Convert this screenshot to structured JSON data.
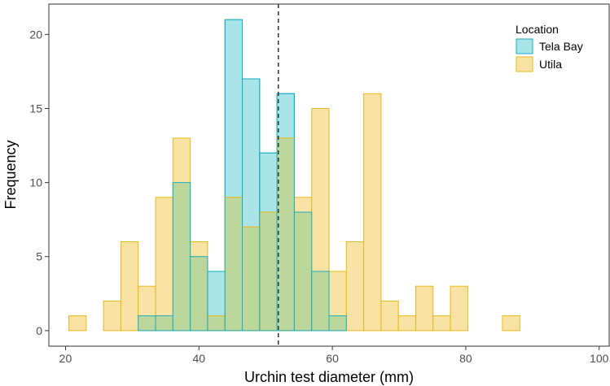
{
  "chart_data": {
    "type": "bar",
    "subtype": "overlaid-histogram",
    "xlabel": "Urchin test diameter (mm)",
    "ylabel": "Frequency",
    "xlim": [
      17.5,
      101.5
    ],
    "ylim": [
      -1.05,
      22.05
    ],
    "xticks": [
      20,
      40,
      60,
      80,
      100
    ],
    "yticks": [
      0,
      5,
      10,
      15,
      20
    ],
    "grid": false,
    "bins": [
      [
        20.5,
        23.1
      ],
      [
        23.1,
        25.7
      ],
      [
        25.7,
        28.3
      ],
      [
        28.3,
        30.9
      ],
      [
        30.9,
        33.5
      ],
      [
        33.5,
        36.1
      ],
      [
        36.1,
        38.7
      ],
      [
        38.7,
        41.3
      ],
      [
        41.3,
        43.9
      ],
      [
        43.9,
        46.5
      ],
      [
        46.5,
        49.1
      ],
      [
        49.1,
        51.7
      ],
      [
        51.7,
        54.3
      ],
      [
        54.3,
        56.9
      ],
      [
        56.9,
        59.5
      ],
      [
        59.5,
        62.1
      ],
      [
        62.1,
        64.7
      ],
      [
        64.7,
        67.3
      ],
      [
        67.3,
        69.9
      ],
      [
        69.9,
        72.5
      ],
      [
        72.5,
        75.1
      ],
      [
        75.1,
        77.7
      ],
      [
        77.7,
        80.3
      ],
      [
        80.3,
        82.9
      ],
      [
        82.9,
        85.5
      ],
      [
        85.5,
        88.1
      ],
      [
        88.1,
        90.7
      ],
      [
        90.7,
        93.3
      ],
      [
        93.3,
        95.9
      ],
      [
        95.9,
        98.5
      ]
    ],
    "series": [
      {
        "name": "Tela Bay",
        "fill": "#a8e4e8",
        "stroke": "#1aacbf",
        "values": [
          0,
          0,
          0,
          0,
          1,
          1,
          10,
          5,
          4,
          21,
          17,
          12,
          16,
          8,
          4,
          1,
          0,
          0,
          0,
          0,
          0,
          0,
          0,
          0,
          0,
          0,
          0,
          0,
          0,
          0
        ]
      },
      {
        "name": "Utila",
        "fill": "#f8e3a4",
        "stroke": "#e6b81c",
        "values": [
          1,
          0,
          2,
          6,
          3,
          9,
          13,
          6,
          1,
          9,
          7,
          8,
          13,
          9,
          15,
          4,
          6,
          16,
          2,
          1,
          3,
          1,
          3,
          0,
          0,
          1,
          0,
          0,
          0,
          0
        ]
      }
    ],
    "overlap_fill": "#bcd79b",
    "vline": {
      "x": 51.9,
      "style": "dashed",
      "color": "#333333"
    },
    "legend": {
      "title": "Location",
      "position": "top-right",
      "entries": [
        "Tela Bay",
        "Utila"
      ]
    }
  }
}
